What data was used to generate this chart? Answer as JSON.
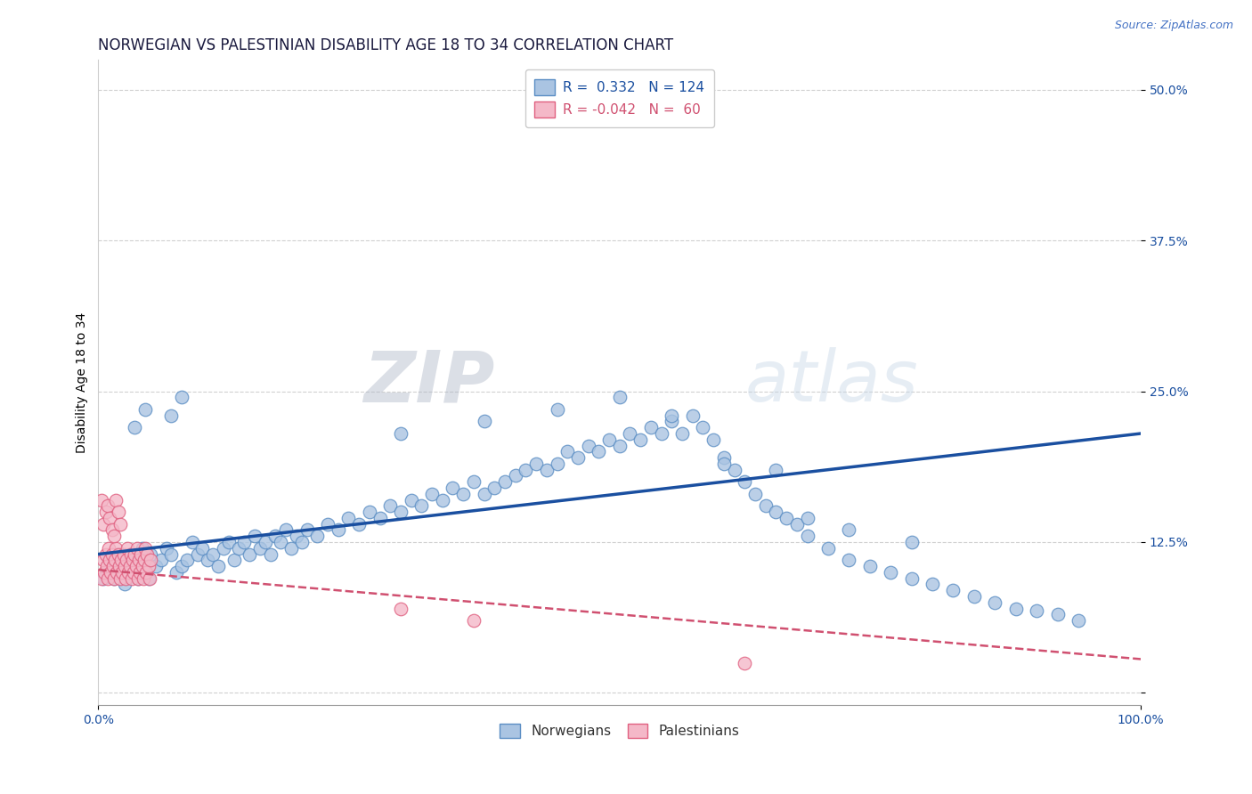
{
  "title": "NORWEGIAN VS PALESTINIAN DISABILITY AGE 18 TO 34 CORRELATION CHART",
  "source_text": "Source: ZipAtlas.com",
  "ylabel": "Disability Age 18 to 34",
  "xlim": [
    0.0,
    1.0
  ],
  "ylim": [
    -0.01,
    0.525
  ],
  "ytick_values": [
    0.0,
    0.125,
    0.25,
    0.375,
    0.5
  ],
  "ytick_labels": [
    "",
    "12.5%",
    "25.0%",
    "37.5%",
    "50.0%"
  ],
  "norwegian_color": "#aac4e2",
  "norwegian_edge_color": "#5b8ec4",
  "palestinian_color": "#f4b8c8",
  "palestinian_edge_color": "#e06080",
  "reg_line_norwegian_color": "#1a4fa0",
  "reg_line_palestinian_color": "#d05070",
  "legend_R_norwegian": "0.332",
  "legend_N_norwegian": "124",
  "legend_R_palestinian": "-0.042",
  "legend_N_palestinian": "60",
  "watermark_zip": "ZIP",
  "watermark_atlas": "atlas",
  "title_fontsize": 12,
  "axis_label_fontsize": 10,
  "tick_fontsize": 10,
  "norwegian_x": [
    0.005,
    0.008,
    0.01,
    0.012,
    0.015,
    0.018,
    0.02,
    0.022,
    0.025,
    0.028,
    0.03,
    0.032,
    0.035,
    0.038,
    0.04,
    0.042,
    0.045,
    0.048,
    0.05,
    0.055,
    0.06,
    0.065,
    0.07,
    0.075,
    0.08,
    0.085,
    0.09,
    0.095,
    0.1,
    0.105,
    0.11,
    0.115,
    0.12,
    0.125,
    0.13,
    0.135,
    0.14,
    0.145,
    0.15,
    0.155,
    0.16,
    0.165,
    0.17,
    0.175,
    0.18,
    0.185,
    0.19,
    0.195,
    0.2,
    0.21,
    0.22,
    0.23,
    0.24,
    0.25,
    0.26,
    0.27,
    0.28,
    0.29,
    0.3,
    0.31,
    0.32,
    0.33,
    0.34,
    0.35,
    0.36,
    0.37,
    0.38,
    0.39,
    0.4,
    0.41,
    0.42,
    0.43,
    0.44,
    0.45,
    0.46,
    0.47,
    0.48,
    0.49,
    0.5,
    0.51,
    0.52,
    0.53,
    0.54,
    0.55,
    0.56,
    0.57,
    0.58,
    0.59,
    0.6,
    0.61,
    0.62,
    0.63,
    0.64,
    0.65,
    0.66,
    0.67,
    0.68,
    0.7,
    0.72,
    0.74,
    0.76,
    0.78,
    0.8,
    0.82,
    0.84,
    0.86,
    0.88,
    0.9,
    0.92,
    0.94,
    0.035,
    0.045,
    0.07,
    0.08,
    0.29,
    0.37,
    0.44,
    0.5,
    0.55,
    0.6,
    0.65,
    0.68,
    0.72,
    0.78
  ],
  "norwegian_y": [
    0.095,
    0.1,
    0.11,
    0.105,
    0.095,
    0.115,
    0.1,
    0.105,
    0.09,
    0.11,
    0.115,
    0.1,
    0.105,
    0.095,
    0.11,
    0.12,
    0.1,
    0.095,
    0.115,
    0.105,
    0.11,
    0.12,
    0.115,
    0.1,
    0.105,
    0.11,
    0.125,
    0.115,
    0.12,
    0.11,
    0.115,
    0.105,
    0.12,
    0.125,
    0.11,
    0.12,
    0.125,
    0.115,
    0.13,
    0.12,
    0.125,
    0.115,
    0.13,
    0.125,
    0.135,
    0.12,
    0.13,
    0.125,
    0.135,
    0.13,
    0.14,
    0.135,
    0.145,
    0.14,
    0.15,
    0.145,
    0.155,
    0.15,
    0.16,
    0.155,
    0.165,
    0.16,
    0.17,
    0.165,
    0.175,
    0.165,
    0.17,
    0.175,
    0.18,
    0.185,
    0.19,
    0.185,
    0.19,
    0.2,
    0.195,
    0.205,
    0.2,
    0.21,
    0.205,
    0.215,
    0.21,
    0.22,
    0.215,
    0.225,
    0.215,
    0.23,
    0.22,
    0.21,
    0.195,
    0.185,
    0.175,
    0.165,
    0.155,
    0.15,
    0.145,
    0.14,
    0.13,
    0.12,
    0.11,
    0.105,
    0.1,
    0.095,
    0.09,
    0.085,
    0.08,
    0.075,
    0.07,
    0.068,
    0.065,
    0.06,
    0.22,
    0.235,
    0.23,
    0.245,
    0.215,
    0.225,
    0.235,
    0.245,
    0.23,
    0.19,
    0.185,
    0.145,
    0.135,
    0.125
  ],
  "palestinian_x": [
    0.003,
    0.005,
    0.006,
    0.007,
    0.008,
    0.009,
    0.01,
    0.011,
    0.012,
    0.013,
    0.014,
    0.015,
    0.016,
    0.017,
    0.018,
    0.019,
    0.02,
    0.021,
    0.022,
    0.023,
    0.024,
    0.025,
    0.026,
    0.027,
    0.028,
    0.029,
    0.03,
    0.031,
    0.032,
    0.033,
    0.034,
    0.035,
    0.036,
    0.037,
    0.038,
    0.039,
    0.04,
    0.041,
    0.042,
    0.043,
    0.044,
    0.045,
    0.046,
    0.047,
    0.048,
    0.049,
    0.05,
    0.003,
    0.005,
    0.007,
    0.009,
    0.011,
    0.013,
    0.015,
    0.017,
    0.019,
    0.021,
    0.29,
    0.36,
    0.62
  ],
  "palestinian_y": [
    0.095,
    0.11,
    0.1,
    0.115,
    0.105,
    0.095,
    0.12,
    0.11,
    0.1,
    0.115,
    0.105,
    0.095,
    0.11,
    0.12,
    0.1,
    0.115,
    0.105,
    0.095,
    0.11,
    0.1,
    0.115,
    0.105,
    0.095,
    0.11,
    0.12,
    0.1,
    0.105,
    0.115,
    0.095,
    0.11,
    0.1,
    0.115,
    0.105,
    0.12,
    0.095,
    0.11,
    0.1,
    0.115,
    0.105,
    0.095,
    0.11,
    0.12,
    0.1,
    0.115,
    0.105,
    0.095,
    0.11,
    0.16,
    0.14,
    0.15,
    0.155,
    0.145,
    0.135,
    0.13,
    0.16,
    0.15,
    0.14,
    0.07,
    0.06,
    0.025
  ]
}
